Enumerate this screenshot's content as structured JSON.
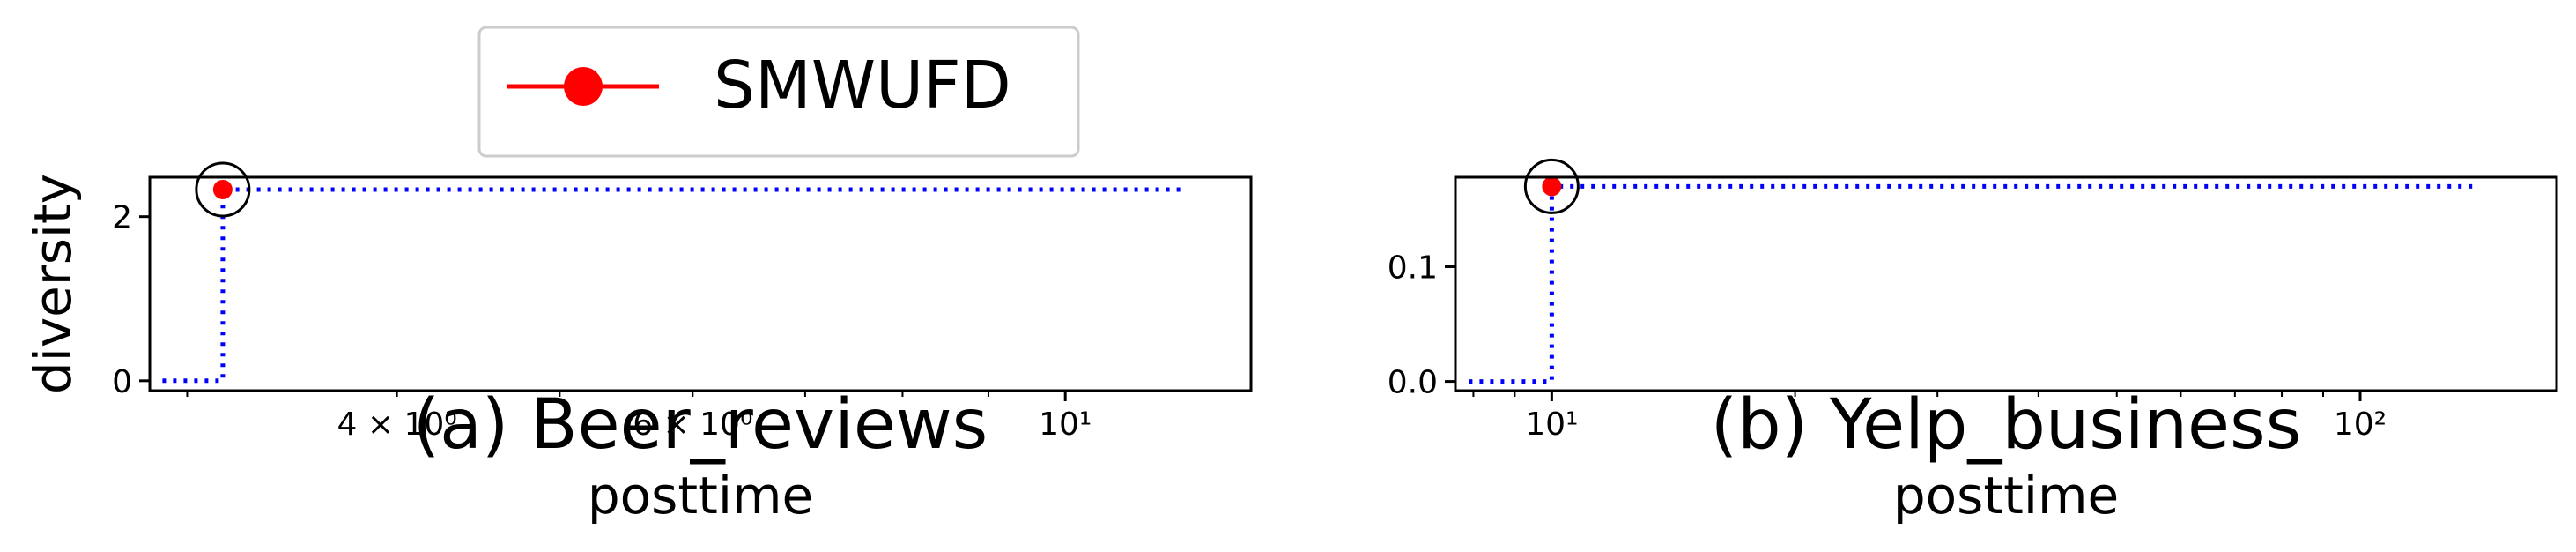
{
  "legend": {
    "label": "SMWUFD",
    "color": "#ff0000",
    "placement": "top-center"
  },
  "chart_data": [
    {
      "type": "line",
      "caption": "(a) Beer_reviews",
      "xlabel": "posttime",
      "ylabel": "diversity",
      "xscale": "log",
      "xlim": [
        2.85,
        12.9
      ],
      "ylim": [
        -0.12,
        2.48
      ],
      "xticks": [
        {
          "value": 4,
          "label": "4 × 10⁰"
        },
        {
          "value": 6,
          "label": "6 × 10⁰"
        },
        {
          "value": 10,
          "label": "10¹"
        }
      ],
      "yticks": [
        {
          "value": 0,
          "label": "0"
        },
        {
          "value": 2,
          "label": "2"
        }
      ],
      "grid": false,
      "series": [
        {
          "name": "SMWUFD",
          "color": "#ff0000",
          "marker": "circle",
          "points": [
            {
              "x": 3.15,
              "y": 2.33
            }
          ],
          "highlight": "circled"
        },
        {
          "color": "#0000ff",
          "style": "dotted-step",
          "points": [
            {
              "x": 2.9,
              "y": 0
            },
            {
              "x": 3.15,
              "y": 0
            },
            {
              "x": 3.15,
              "y": 2.33
            },
            {
              "x": 11.8,
              "y": 2.33
            }
          ]
        }
      ]
    },
    {
      "type": "line",
      "caption": "(b) Yelp_business",
      "xlabel": "posttime",
      "ylabel": "",
      "xscale": "log",
      "xlim": [
        7.6,
        175
      ],
      "ylim": [
        -0.008,
        0.178
      ],
      "xticks": [
        {
          "value": 10,
          "label": "10¹"
        },
        {
          "value": 100,
          "label": "10²"
        }
      ],
      "yticks": [
        {
          "value": 0,
          "label": "0.0"
        },
        {
          "value": 0.1,
          "label": "0.1"
        }
      ],
      "grid": false,
      "series": [
        {
          "name": "SMWUFD",
          "color": "#ff0000",
          "marker": "circle",
          "points": [
            {
              "x": 10,
              "y": 0.17
            }
          ],
          "highlight": "circled"
        },
        {
          "color": "#0000ff",
          "style": "dotted-step",
          "points": [
            {
              "x": 7.9,
              "y": 0
            },
            {
              "x": 10,
              "y": 0
            },
            {
              "x": 10,
              "y": 0.17
            },
            {
              "x": 140,
              "y": 0.17
            }
          ]
        }
      ]
    }
  ]
}
